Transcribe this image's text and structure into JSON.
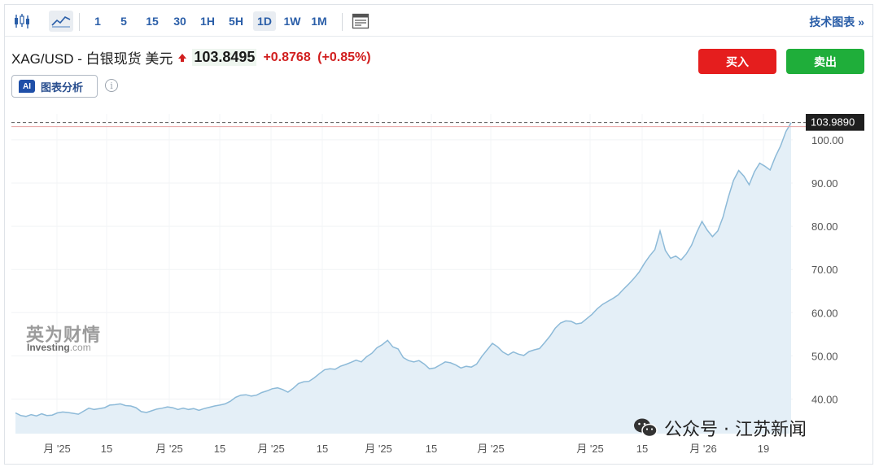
{
  "toolbar": {
    "icons": [
      "candlestick-icon",
      "line-chart-icon",
      "layout-icon"
    ],
    "intervals": [
      "1",
      "5",
      "15",
      "30",
      "1H",
      "5H",
      "1D",
      "1W",
      "1M"
    ],
    "active_interval": "1D",
    "tech_chart_link": "技术图表 »"
  },
  "header": {
    "symbol": "XAG/USD - 白银现货 美元",
    "price": "103.8495",
    "change": "+0.8768",
    "change_pct": "(+0.85%)",
    "buy_label": "买入",
    "sell_label": "卖出",
    "ai_badge": "AI",
    "ai_label": "图表分析",
    "info_icon": "i"
  },
  "colors": {
    "accent": "#2a5ea8",
    "up": "#d11f1f",
    "buy": "#e51e1e",
    "sell": "#1fae3a",
    "line": "#8dbad8",
    "fill": "#e4eff7"
  },
  "chart_data": {
    "type": "area",
    "x_tick_labels": [
      "月 '25",
      "15",
      "月 '25",
      "15",
      "月 '25",
      "15",
      "月 '25",
      "15",
      "月 '25",
      "月 '25",
      "15",
      "月 '26",
      "19"
    ],
    "y_tick_labels": [
      "100.00",
      "90.00",
      "80.00",
      "70.00",
      "60.00",
      "50.00",
      "40.00"
    ],
    "ylim": [
      32,
      106
    ],
    "last_price_label": "103.9890",
    "last_price": 103.989,
    "series": [
      {
        "values": [
          36.8,
          36.2,
          36.0,
          36.4,
          36.1,
          36.6,
          36.2,
          36.3,
          36.8,
          37.0,
          36.9,
          36.7,
          36.5,
          37.2,
          37.9,
          37.6,
          37.8,
          38.0,
          38.6,
          38.7,
          38.9,
          38.5,
          38.4,
          38.0,
          37.1,
          36.9,
          37.3,
          37.7,
          37.9,
          38.2,
          38.0,
          37.6,
          37.9,
          37.6,
          37.8,
          37.4,
          37.8,
          38.1,
          38.4,
          38.6,
          38.9,
          39.5,
          40.4,
          40.9,
          41.0,
          40.7,
          40.9,
          41.5,
          41.9,
          42.4,
          42.6,
          42.2,
          41.6,
          42.5,
          43.6,
          44.0,
          44.1,
          44.9,
          45.9,
          46.8,
          47.0,
          46.9,
          47.6,
          48.0,
          48.5,
          49.0,
          48.6,
          49.8,
          50.6,
          51.9,
          52.6,
          53.6,
          52.1,
          51.6,
          49.6,
          48.9,
          48.6,
          48.9,
          48.1,
          47.0,
          47.2,
          47.9,
          48.6,
          48.4,
          47.9,
          47.2,
          47.6,
          47.4,
          48.1,
          49.9,
          51.4,
          52.9,
          52.1,
          50.9,
          50.2,
          50.9,
          50.4,
          50.1,
          51.0,
          51.4,
          51.7,
          53.1,
          54.6,
          56.4,
          57.6,
          58.1,
          58.0,
          57.4,
          57.6,
          58.6,
          59.6,
          60.9,
          61.9,
          62.6,
          63.3,
          64.1,
          65.4,
          66.6,
          67.9,
          69.4,
          71.4,
          73.1,
          74.6,
          78.9,
          74.4,
          72.6,
          73.1,
          72.2,
          73.6,
          75.6,
          78.6,
          81.1,
          79.1,
          77.6,
          78.9,
          82.1,
          86.6,
          90.6,
          92.9,
          91.6,
          89.6,
          92.6,
          94.6,
          93.9,
          93.0,
          96.1,
          98.6,
          101.9,
          103.989
        ]
      }
    ]
  },
  "watermarks": {
    "investing_cn": "英为财情",
    "investing_word": "Investing",
    "investing_suffix": ".com",
    "wechat_source": "公众号 · 江苏新闻"
  }
}
